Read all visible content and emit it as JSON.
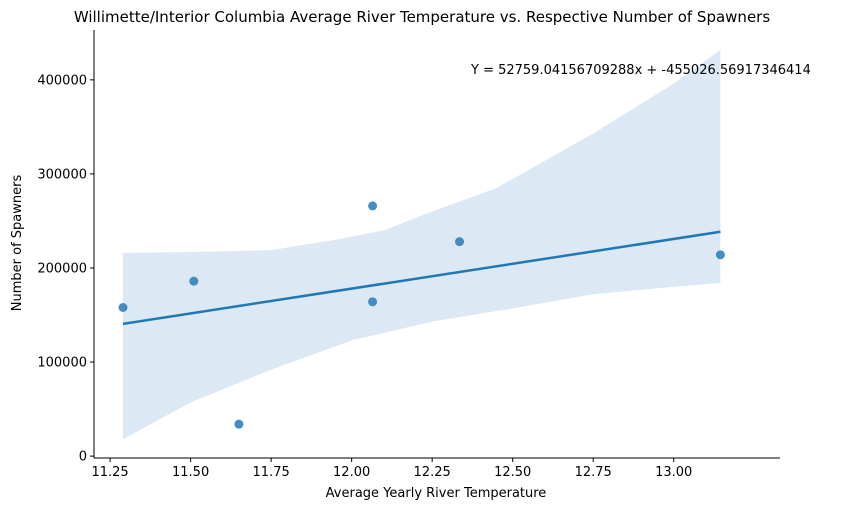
{
  "chart_data": {
    "type": "scatter",
    "title": "Willimette/Interior Columbia Average River Temperature vs. Respective Number of Spawners",
    "xlabel": "Average Yearly River Temperature",
    "ylabel": "Number of Spawners",
    "annotation": "Y = 52759.04156709288x + -455026.56917346414",
    "xlim": [
      11.2,
      13.33
    ],
    "ylim": [
      -2000,
      453000
    ],
    "x_ticks": [
      11.25,
      11.5,
      11.75,
      12.0,
      12.25,
      12.5,
      12.75,
      13.0
    ],
    "x_tick_labels": [
      "11.25",
      "11.50",
      "11.75",
      "12.00",
      "12.25",
      "12.50",
      "12.75",
      "13.00"
    ],
    "y_ticks": [
      0,
      100000,
      200000,
      300000,
      400000
    ],
    "y_tick_labels": [
      "0",
      "100000",
      "200000",
      "300000",
      "400000"
    ],
    "points": [
      {
        "x": 11.29,
        "y": 158000
      },
      {
        "x": 11.51,
        "y": 186000
      },
      {
        "x": 11.65,
        "y": 34000
      },
      {
        "x": 12.065,
        "y": 266000
      },
      {
        "x": 12.065,
        "y": 164000
      },
      {
        "x": 12.335,
        "y": 228000
      },
      {
        "x": 13.145,
        "y": 214000
      }
    ],
    "regression": {
      "slope": 52759.04156709288,
      "intercept": -455026.56917346414,
      "x_range": [
        11.29,
        13.145
      ],
      "ci_upper": [
        [
          11.29,
          216000
        ],
        [
          11.5,
          217000
        ],
        [
          11.75,
          219000
        ],
        [
          11.95,
          230000
        ],
        [
          12.1,
          240000
        ],
        [
          12.25,
          260000
        ],
        [
          12.45,
          285000
        ],
        [
          12.75,
          343000
        ],
        [
          13.0,
          396000
        ],
        [
          13.145,
          432000
        ]
      ],
      "ci_lower": [
        [
          11.29,
          18000
        ],
        [
          11.5,
          57000
        ],
        [
          11.75,
          92000
        ],
        [
          12.0,
          123000
        ],
        [
          12.25,
          143000
        ],
        [
          12.5,
          157000
        ],
        [
          12.75,
          172000
        ],
        [
          13.0,
          180000
        ],
        [
          13.145,
          184000
        ]
      ]
    },
    "colors": {
      "points": "#3182bd",
      "line": "#1f77b4",
      "band": "#dce8f3"
    },
    "grid": false,
    "legend": "none"
  }
}
